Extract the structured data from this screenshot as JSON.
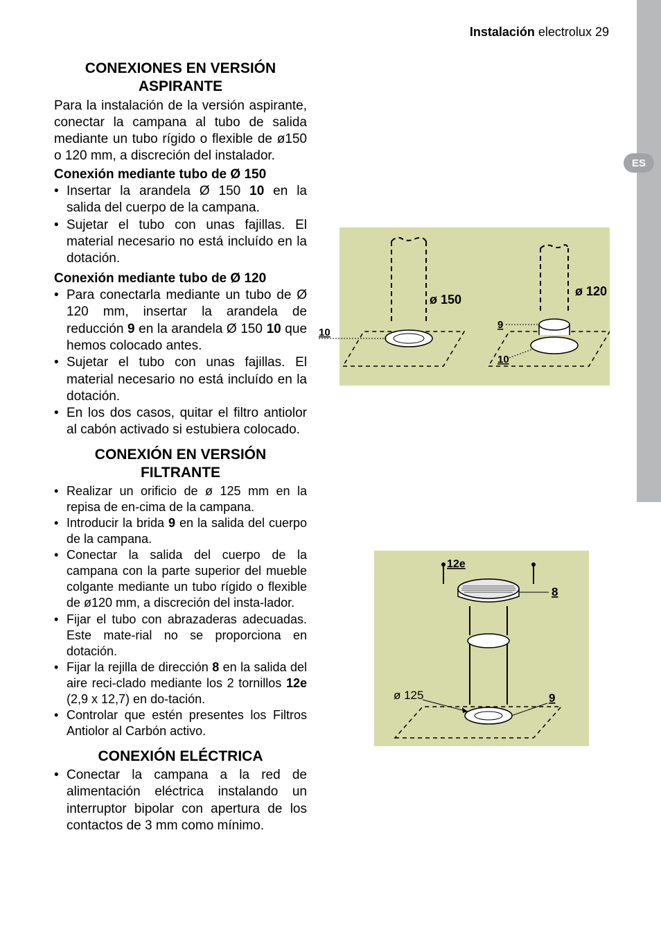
{
  "header": {
    "section_label": "Instalación",
    "brand": "electrolux",
    "page_number": "29"
  },
  "lang_badge": "ES",
  "section1": {
    "title": "CONEXIONES EN VERSIÓN ASPIRANTE",
    "intro": "Para la instalación de la versión aspirante, conectar la campana al tubo de salida mediante un tubo rígido o flexible de ø150 o 120 mm, a discreción del instalador.",
    "sub1": "Conexión mediante tubo de Ø 150",
    "sub1_items": [
      "Insertar la arandela Ø 150 <span class='b'>10</span> en la salida del cuerpo de la campana.",
      "Sujetar el tubo con unas fajillas. El material necesario no está incluído en la dotación."
    ],
    "sub2": "Conexión mediante tubo de Ø 120",
    "sub2_items": [
      "Para conectarla mediante un tubo de Ø 120 mm, insertar la arandela de reducción <span class='b'>9</span> en la arandela Ø 150  <span class='b'>10</span> que hemos colocado antes.",
      "Sujetar el tubo con unas fajillas. El material necesario no está incluído en la dotación.",
      "En los dos casos, quitar el filtro antiolor al cabón activado si estubiera colocado."
    ]
  },
  "section2": {
    "title": "CONEXIÓN EN VERSIÓN FILTRANTE",
    "items": [
      "Realizar un orificio de ø 125 mm en la repisa de en-cima de la campana.",
      "Introducir la brida <span class='b'>9</span> en la salida del cuerpo de la campana.",
      "Conectar la salida del cuerpo de la campana con la parte superior del mueble colgante mediante un tubo rígido o flexible de ø120 mm, a discreción del insta-lador.",
      "Fijar el tubo con abrazaderas adecuadas. Este mate-rial no se proporciona en dotación.",
      "Fijar la rejilla de dirección <span class='b'>8</span> en la salida del aire reci-clado mediante los 2 tornillos <span class='b'>12e</span> (2,9 x 12,7) en do-tación.",
      "Controlar que estén presentes los Filtros Antiolor al Carbón activo."
    ]
  },
  "section3": {
    "title": "CONEXIÓN ELÉCTRICA",
    "items": [
      "Conectar la campana a la red de alimentación eléctrica instalando un interruptor bipolar con apertura de los contactos de 3 mm como mínimo."
    ]
  },
  "figure1": {
    "labels": {
      "d150": "ø 150",
      "d120": "ø 120",
      "n10a": "10",
      "n10b": "10",
      "n9": "9"
    },
    "colors": {
      "bg": "#d7dbaa",
      "line": "#000000",
      "dash": "#000000"
    }
  },
  "figure2": {
    "labels": {
      "d125": "ø 125",
      "n12e": "12e",
      "n8": "8",
      "n9": "9"
    },
    "colors": {
      "bg": "#d7dbaa",
      "line": "#000000"
    }
  }
}
